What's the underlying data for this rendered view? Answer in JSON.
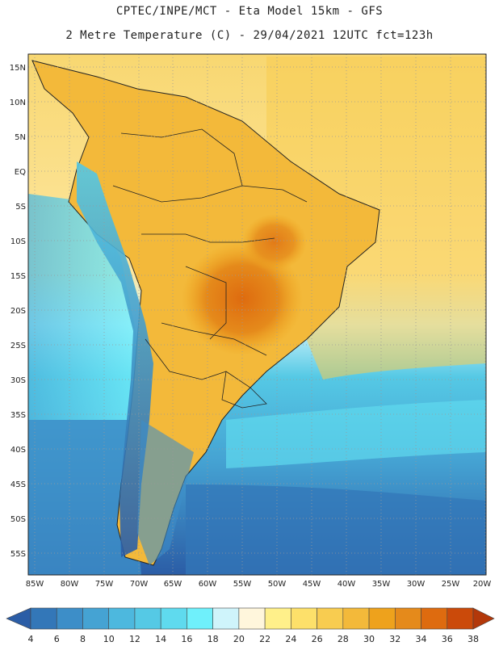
{
  "header": {
    "line1": "CPTEC/INPE/MCT -  Eta Model 15km - GFS",
    "line2": "2 Metre Temperature (C) - 29/04/2021 12UTC fct=123h"
  },
  "map": {
    "lat_labels": [
      "15N",
      "10N",
      "5N",
      "EQ",
      "5S",
      "10S",
      "15S",
      "20S",
      "25S",
      "30S",
      "35S",
      "40S",
      "45S",
      "50S",
      "55S"
    ],
    "lon_labels": [
      "85W",
      "80W",
      "75W",
      "70W",
      "65W",
      "60W",
      "55W",
      "50W",
      "45W",
      "40W",
      "35W",
      "30W",
      "25W",
      "20W"
    ]
  },
  "colorbar": {
    "labels": [
      "4",
      "6",
      "8",
      "10",
      "12",
      "14",
      "16",
      "18",
      "20",
      "22",
      "24",
      "26",
      "28",
      "30",
      "32",
      "34",
      "36",
      "38"
    ],
    "colors": [
      "#2b5da6",
      "#3377b8",
      "#3d8ec8",
      "#45a3d3",
      "#4db8de",
      "#55c9e5",
      "#5fdaee",
      "#6ff0fb",
      "#cff4fb",
      "#fff6dc",
      "#fff08a",
      "#fde06a",
      "#f8cc50",
      "#f3b93a",
      "#eea21c",
      "#e58a1b",
      "#de6b0f",
      "#cb4a0a",
      "#b3380a"
    ]
  },
  "palette": {
    "ocean_deep": "#2b5da6",
    "ocean_mid": "#45a3d3",
    "ocean_light": "#5fdaee",
    "land_warm": "#f3b93a",
    "land_hot": "#e58a1b",
    "tropics": "#fde06a"
  }
}
